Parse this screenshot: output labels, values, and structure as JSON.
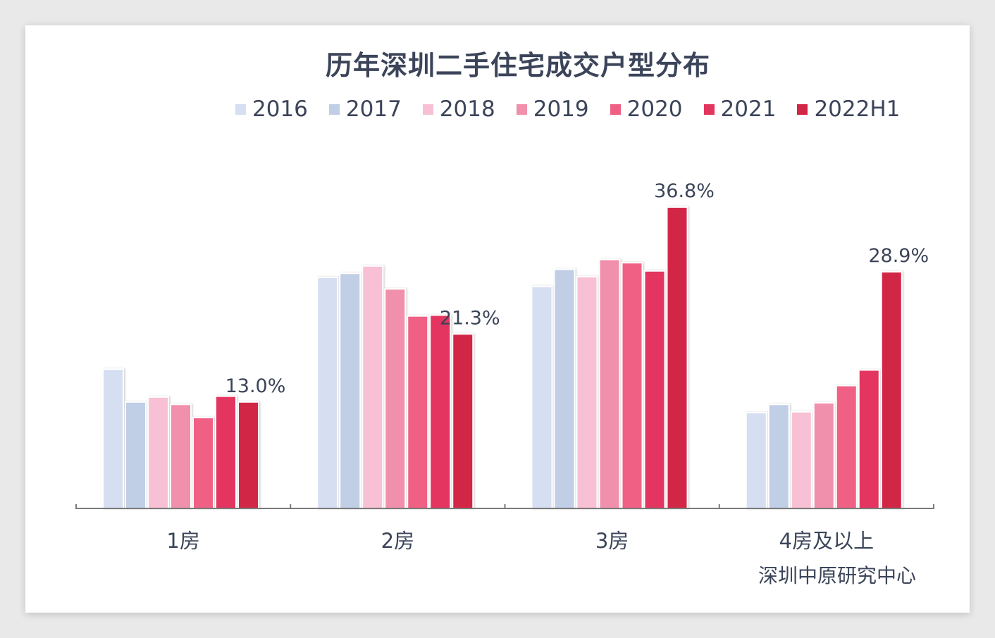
{
  "chart_data": {
    "type": "bar",
    "title": "历年深圳二手住宅成交户型分布",
    "categories": [
      "1房",
      "2房",
      "3房",
      "4房及以上"
    ],
    "series": [
      {
        "name": "2016",
        "color": "#d6def2",
        "values": [
          17.0,
          28.2,
          27.1,
          11.7
        ]
      },
      {
        "name": "2017",
        "color": "#c0cee6",
        "values": [
          13.0,
          28.7,
          29.2,
          12.7
        ]
      },
      {
        "name": "2018",
        "color": "#f8c0d4",
        "values": [
          13.6,
          29.6,
          28.3,
          11.8
        ]
      },
      {
        "name": "2019",
        "color": "#f090ac",
        "values": [
          12.7,
          26.8,
          30.4,
          12.9
        ]
      },
      {
        "name": "2020",
        "color": "#f06084",
        "values": [
          11.1,
          23.5,
          30.0,
          15.0
        ]
      },
      {
        "name": "2021",
        "color": "#e3365e",
        "values": [
          13.7,
          23.6,
          29.0,
          16.9
        ]
      },
      {
        "name": "2022H1",
        "color": "#d22646",
        "values": [
          13.0,
          21.3,
          36.8,
          28.9
        ]
      }
    ],
    "data_labels": [
      "13.0%",
      "21.3%",
      "36.8%",
      "28.9%"
    ],
    "ylim": [
      0,
      40
    ],
    "grid": false,
    "legend_position": "top"
  },
  "source": "深圳中原研究中心",
  "colors": {
    "text": "#3b4459",
    "axis": "#7a7a7a",
    "background": "#ffffff"
  }
}
